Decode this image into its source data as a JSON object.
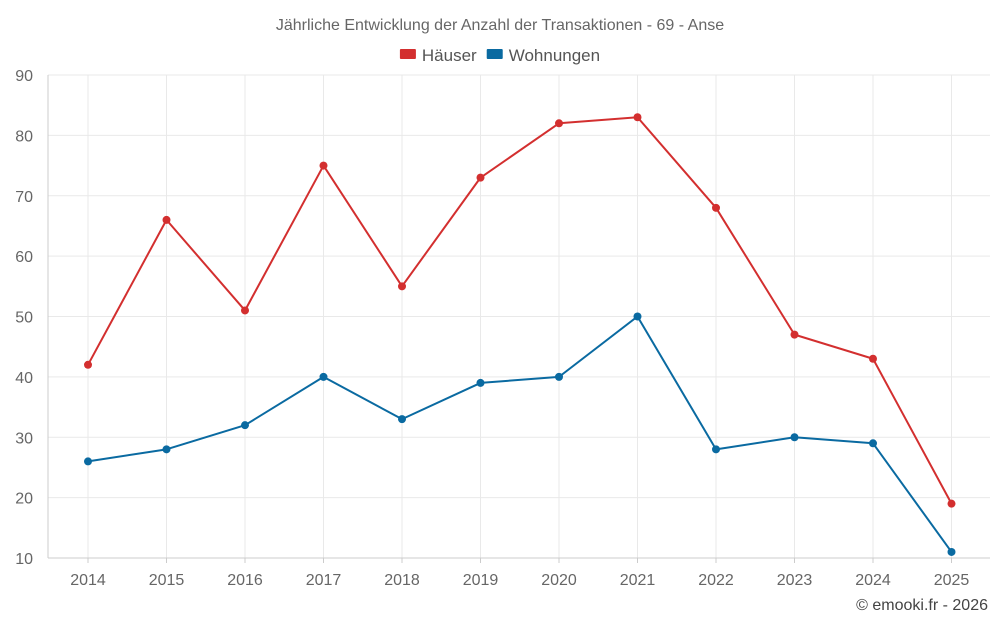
{
  "chart_data": {
    "type": "line",
    "title": "Jährliche Entwicklung der Anzahl der Transaktionen - 69 - Anse",
    "categories": [
      "2014",
      "2015",
      "2016",
      "2017",
      "2018",
      "2019",
      "2020",
      "2021",
      "2022",
      "2023",
      "2024",
      "2025"
    ],
    "series": [
      {
        "name": "Häuser",
        "color": "#d32f2f",
        "values": [
          42,
          66,
          51,
          75,
          55,
          73,
          82,
          83,
          68,
          47,
          43,
          19
        ]
      },
      {
        "name": "Wohnungen",
        "color": "#0a6aa1",
        "values": [
          26,
          28,
          32,
          40,
          33,
          39,
          40,
          50,
          28,
          30,
          29,
          11
        ]
      }
    ],
    "ylim": [
      10,
      90
    ],
    "yticks": [
      10,
      20,
      30,
      40,
      50,
      60,
      70,
      80,
      90
    ],
    "legend_position": "top-center",
    "grid": true
  },
  "credit": "© emooki.fr - 2026"
}
